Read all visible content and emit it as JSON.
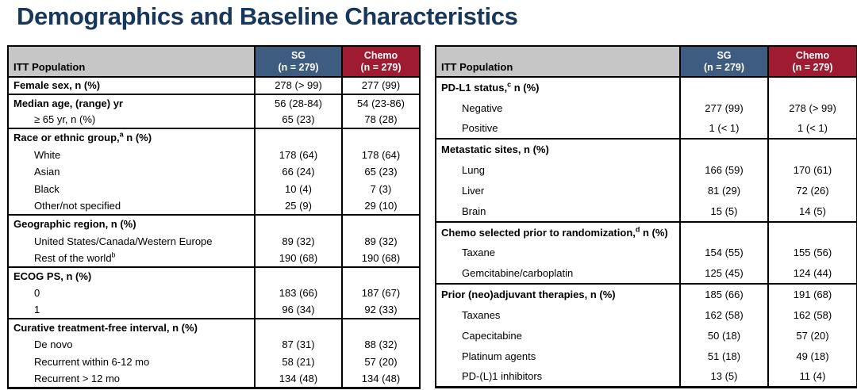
{
  "title": "Demographics and Baseline Characteristics",
  "colors": {
    "title_navy": "#17375d",
    "header_gray": "#c6c6c6",
    "sg_blue": "#3e5c80",
    "chemo_red": "#9e1b32",
    "border": "#000000"
  },
  "tables": [
    {
      "header": {
        "label": "ITT Population",
        "col1": "SG",
        "col1_n": "(n = 279)",
        "col2": "Chemo",
        "col2_n": "(n = 279)"
      },
      "rows": [
        {
          "pre": "Female sex, n (%)",
          "sup": "",
          "post": "",
          "style": "group",
          "sg": "278 (> 99)",
          "chemo": "277 (99)",
          "sect": false
        },
        {
          "pre": "Median age, (range) yr",
          "sup": "",
          "post": "",
          "style": "group",
          "sg": "56 (28-84)",
          "chemo": "54 (23-86)",
          "sect": true
        },
        {
          "pre": "≥ 65 yr, n (%)",
          "sup": "",
          "post": "",
          "style": "sub",
          "sg": "65 (23)",
          "chemo": "78 (28)",
          "sect": false
        },
        {
          "pre": "Race or ethnic group,",
          "sup": "a",
          "post": " n (%)",
          "style": "group",
          "sg": "",
          "chemo": "",
          "sect": true
        },
        {
          "pre": "White",
          "sup": "",
          "post": "",
          "style": "sub",
          "sg": "178 (64)",
          "chemo": "178 (64)",
          "sect": false
        },
        {
          "pre": "Asian",
          "sup": "",
          "post": "",
          "style": "sub",
          "sg": "66 (24)",
          "chemo": "65 (23)",
          "sect": false
        },
        {
          "pre": "Black",
          "sup": "",
          "post": "",
          "style": "sub",
          "sg": "10 (4)",
          "chemo": "7 (3)",
          "sect": false
        },
        {
          "pre": "Other/not specified",
          "sup": "",
          "post": "",
          "style": "sub",
          "sg": "25 (9)",
          "chemo": "29 (10)",
          "sect": false
        },
        {
          "pre": "Geographic region, n (%)",
          "sup": "",
          "post": "",
          "style": "group",
          "sg": "",
          "chemo": "",
          "sect": true
        },
        {
          "pre": "United States/Canada/Western Europe",
          "sup": "",
          "post": "",
          "style": "sub",
          "sg": "89 (32)",
          "chemo": "89 (32)",
          "sect": false
        },
        {
          "pre": "Rest of the world",
          "sup": "b",
          "post": "",
          "style": "sub",
          "sg": "190 (68)",
          "chemo": "190 (68)",
          "sect": false
        },
        {
          "pre": "ECOG PS, n (%)",
          "sup": "",
          "post": "",
          "style": "group",
          "sg": "",
          "chemo": "",
          "sect": true
        },
        {
          "pre": "0",
          "sup": "",
          "post": "",
          "style": "sub",
          "sg": "183 (66)",
          "chemo": "187 (67)",
          "sect": false
        },
        {
          "pre": "1",
          "sup": "",
          "post": "",
          "style": "sub",
          "sg": "96 (34)",
          "chemo": "92 (33)",
          "sect": false
        },
        {
          "pre": "Curative treatment-free interval, n (%)",
          "sup": "",
          "post": "",
          "style": "group",
          "sg": "",
          "chemo": "",
          "sect": true
        },
        {
          "pre": "De novo",
          "sup": "",
          "post": "",
          "style": "sub",
          "sg": "87 (31)",
          "chemo": "88 (32)",
          "sect": false
        },
        {
          "pre": "Recurrent within 6-12 mo",
          "sup": "",
          "post": "",
          "style": "sub",
          "sg": "58 (21)",
          "chemo": "57 (20)",
          "sect": false
        },
        {
          "pre": "Recurrent > 12 mo",
          "sup": "",
          "post": "",
          "style": "sub",
          "sg": "134 (48)",
          "chemo": "134 (48)",
          "sect": false
        }
      ]
    },
    {
      "header": {
        "label": "ITT Population",
        "col1": "SG",
        "col1_n": "(n = 279)",
        "col2": "Chemo",
        "col2_n": "(n = 279)"
      },
      "rows": [
        {
          "pre": "PD-L1 status,",
          "sup": "c",
          "post": " n (%)",
          "style": "group",
          "sg": "",
          "chemo": "",
          "sect": false
        },
        {
          "pre": "Negative",
          "sup": "",
          "post": "",
          "style": "sub",
          "sg": "277 (99)",
          "chemo": "278 (> 99)",
          "sect": false
        },
        {
          "pre": "Positive",
          "sup": "",
          "post": "",
          "style": "sub",
          "sg": "1 (< 1)",
          "chemo": "1 (< 1)",
          "sect": false
        },
        {
          "pre": "Metastatic sites, n (%)",
          "sup": "",
          "post": "",
          "style": "group",
          "sg": "",
          "chemo": "",
          "sect": true
        },
        {
          "pre": "Lung",
          "sup": "",
          "post": "",
          "style": "sub",
          "sg": "166 (59)",
          "chemo": "170 (61)",
          "sect": false
        },
        {
          "pre": "Liver",
          "sup": "",
          "post": "",
          "style": "sub",
          "sg": "81 (29)",
          "chemo": "72 (26)",
          "sect": false
        },
        {
          "pre": "Brain",
          "sup": "",
          "post": "",
          "style": "sub",
          "sg": "15 (5)",
          "chemo": "14 (5)",
          "sect": false
        },
        {
          "pre": "Chemo selected prior to randomization,",
          "sup": "d",
          "post": " n (%)",
          "style": "group",
          "sg": "",
          "chemo": "",
          "sect": true
        },
        {
          "pre": "Taxane",
          "sup": "",
          "post": "",
          "style": "sub",
          "sg": "154 (55)",
          "chemo": "155 (56)",
          "sect": false
        },
        {
          "pre": "Gemcitabine/carboplatin",
          "sup": "",
          "post": "",
          "style": "sub",
          "sg": "125 (45)",
          "chemo": "124 (44)",
          "sect": false
        },
        {
          "pre": "Prior (neo)adjuvant therapies, n (%)",
          "sup": "",
          "post": "",
          "style": "group",
          "sg": "185 (66)",
          "chemo": "191 (68)",
          "sect": true
        },
        {
          "pre": "Taxanes",
          "sup": "",
          "post": "",
          "style": "sub",
          "sg": "162 (58)",
          "chemo": "162 (58)",
          "sect": false
        },
        {
          "pre": "Capecitabine",
          "sup": "",
          "post": "",
          "style": "sub",
          "sg": "50 (18)",
          "chemo": "57 (20)",
          "sect": false
        },
        {
          "pre": "Platinum agents",
          "sup": "",
          "post": "",
          "style": "sub",
          "sg": "51 (18)",
          "chemo": "49 (18)",
          "sect": false
        },
        {
          "pre": "PD-(L)1 inhibitors",
          "sup": "",
          "post": "",
          "style": "sub",
          "sg": "13 (5)",
          "chemo": "11 (4)",
          "sect": false
        }
      ]
    }
  ]
}
